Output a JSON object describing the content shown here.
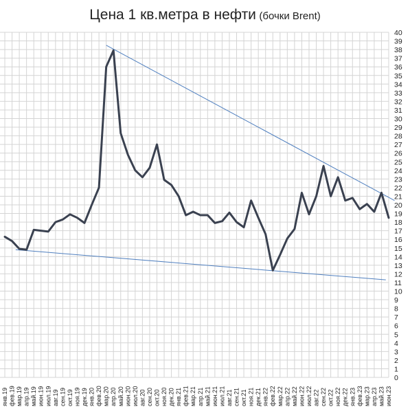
{
  "title": "Цена 1 кв.метра в нефти",
  "subtitle": "(бочки Brent)",
  "colors": {
    "series": "#3a4150",
    "trendline": "#4f7fbf",
    "grid": "#d4d4d4"
  },
  "chart_data": {
    "type": "line",
    "title": "Цена 1 кв.метра в нефти (бочки Brent)",
    "xlabel": "",
    "ylabel": "",
    "ylim": [
      0,
      40
    ],
    "y_ticks": [
      0,
      1,
      2,
      3,
      4,
      5,
      6,
      7,
      8,
      9,
      10,
      11,
      12,
      13,
      14,
      15,
      16,
      17,
      18,
      19,
      20,
      21,
      22,
      23,
      24,
      25,
      26,
      27,
      28,
      29,
      30,
      31,
      32,
      33,
      34,
      35,
      36,
      37,
      38,
      39,
      40
    ],
    "y_axis_side": "right",
    "grid": true,
    "legend": "none",
    "categories": [
      "янв.19",
      "фев.19",
      "мар.19",
      "апр.19",
      "май.19",
      "июн.19",
      "июл.19",
      "авг.19",
      "сен.19",
      "окт.19",
      "ноя.19",
      "дек.19",
      "янв.20",
      "фев.20",
      "мар.20",
      "апр.20",
      "май.20",
      "июн.20",
      "июл.20",
      "авг.20",
      "сен.20",
      "окт.20",
      "ноя.20",
      "дек.20",
      "янв.21",
      "фев.21",
      "мар.21",
      "апр.21",
      "май.21",
      "июн.21",
      "июл.21",
      "авг.21",
      "сен.21",
      "окт.21",
      "ноя.21",
      "дек.21",
      "янв.22",
      "фев.22",
      "мар.22",
      "апр.22",
      "май.22",
      "июн.22",
      "июл.22",
      "авг.22",
      "сен.22",
      "окт.22",
      "ноя.22",
      "дек.22",
      "янв.23",
      "фев.23",
      "мар.23",
      "апр.23",
      "май.23",
      "июн.23"
    ],
    "series": [
      {
        "values": [
          16.3,
          15.8,
          14.9,
          14.8,
          17.1,
          17.0,
          16.9,
          18.0,
          18.3,
          18.9,
          18.5,
          17.9,
          20.0,
          22.0,
          36.0,
          37.9,
          28.3,
          25.8,
          24.0,
          23.2,
          24.3,
          27.0,
          22.9,
          22.3,
          21.0,
          18.8,
          19.2,
          18.8,
          18.8,
          17.9,
          18.1,
          19.1,
          18.0,
          17.4,
          20.5,
          18.5,
          16.6,
          12.4,
          14.2,
          16.1,
          17.2,
          21.4,
          18.9,
          21.0,
          24.5,
          21.0,
          23.2,
          20.5,
          20.8,
          19.5,
          20.1,
          19.2,
          21.4,
          18.5
        ]
      }
    ],
    "trendlines": [
      {
        "x_start": 14.0,
        "y_start": 38.5,
        "x_end": 53.8,
        "y_end": 20.5
      },
      {
        "x_start": 1.5,
        "y_start": 14.8,
        "x_end": 52.6,
        "y_end": 11.3
      }
    ]
  }
}
